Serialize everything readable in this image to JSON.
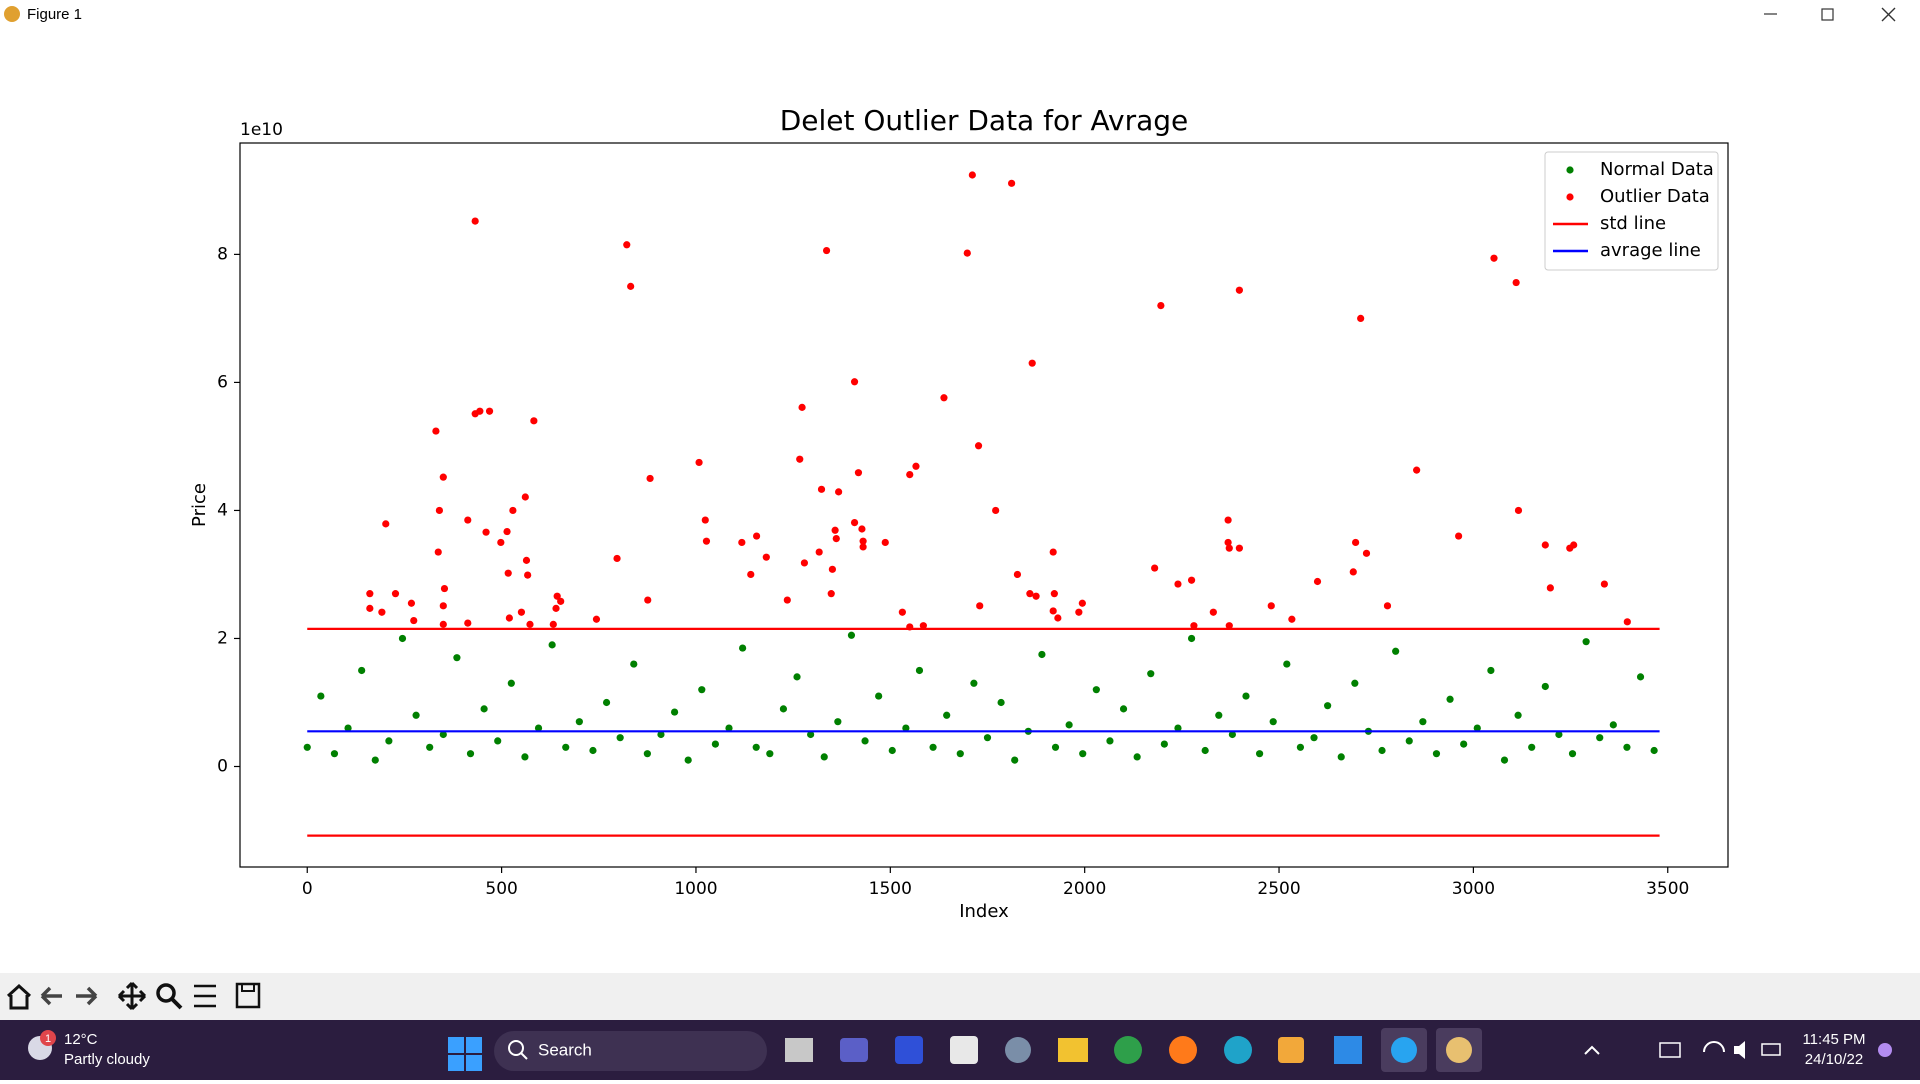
{
  "window": {
    "title": "Figure 1"
  },
  "chart_data": {
    "type": "scatter",
    "title": "Delet Outlier Data for Avrage",
    "x_label": "Index",
    "y_label": "Price",
    "y_offset_label": "1e10",
    "xlim": [
      -173,
      3655
    ],
    "ylim": [
      -1.57,
      9.74
    ],
    "xticks": [
      0,
      500,
      1000,
      1500,
      2000,
      2500,
      3000,
      3500
    ],
    "yticks": [
      0,
      2,
      4,
      6,
      8
    ],
    "grid": false,
    "legend": "upper right",
    "series": [
      {
        "name": "Normal Data",
        "type": "scatter",
        "color": "#008000",
        "x": [
          0,
          35,
          70,
          105,
          140,
          175,
          210,
          245,
          280,
          315,
          350,
          385,
          420,
          455,
          490,
          525,
          560,
          595,
          630,
          665,
          700,
          735,
          770,
          805,
          840,
          875,
          910,
          945,
          980,
          1015,
          1050,
          1085,
          1120,
          1155,
          1190,
          1225,
          1260,
          1295,
          1330,
          1365,
          1400,
          1435,
          1470,
          1505,
          1540,
          1575,
          1610,
          1645,
          1680,
          1715,
          1750,
          1785,
          1820,
          1855,
          1890,
          1925,
          1960,
          1995,
          2030,
          2065,
          2100,
          2135,
          2170,
          2205,
          2240,
          2275,
          2310,
          2345,
          2380,
          2415,
          2450,
          2485,
          2520,
          2555,
          2590,
          2625,
          2660,
          2695,
          2730,
          2765,
          2800,
          2835,
          2870,
          2905,
          2940,
          2975,
          3010,
          3045,
          3080,
          3115,
          3150,
          3185,
          3220,
          3255,
          3290,
          3325,
          3360,
          3395,
          3430,
          3465
        ],
        "values": [
          0.3,
          1.1,
          0.2,
          0.6,
          1.5,
          0.1,
          0.4,
          2.0,
          0.8,
          0.3,
          0.5,
          1.7,
          0.2,
          0.9,
          0.4,
          1.3,
          0.15,
          0.6,
          1.9,
          0.3,
          0.7,
          0.25,
          1.0,
          0.45,
          1.6,
          0.2,
          0.5,
          0.85,
          0.1,
          1.2,
          0.35,
          0.6,
          1.85,
          0.3,
          0.2,
          0.9,
          1.4,
          0.5,
          0.15,
          0.7,
          2.05,
          0.4,
          1.1,
          0.25,
          0.6,
          1.5,
          0.3,
          0.8,
          0.2,
          1.3,
          0.45,
          1.0,
          0.1,
          0.55,
          1.75,
          0.3,
          0.65,
          0.2,
          1.2,
          0.4,
          0.9,
          0.15,
          1.45,
          0.35,
          0.6,
          2.0,
          0.25,
          0.8,
          0.5,
          1.1,
          0.2,
          0.7,
          1.6,
          0.3,
          0.45,
          0.95,
          0.15,
          1.3,
          0.55,
          0.25,
          1.8,
          0.4,
          0.7,
          0.2,
          1.05,
          0.35,
          0.6,
          1.5,
          0.1,
          0.8,
          0.3,
          1.25,
          0.5,
          0.2,
          1.95,
          0.45,
          0.65,
          0.3,
          1.4,
          0.25
        ]
      },
      {
        "name": "Outlier Data",
        "type": "scatter",
        "color": "#ff0000",
        "x": [
          161,
          161,
          192,
          202,
          227,
          268,
          274,
          331,
          337,
          340,
          350,
          353,
          350,
          350,
          413,
          413,
          432,
          432,
          444,
          460,
          469,
          498,
          514,
          517,
          520,
          529,
          551,
          561,
          564,
          567,
          573,
          583,
          633,
          640,
          643,
          652,
          744,
          797,
          822,
          832,
          876,
          882,
          1008,
          1024,
          1027,
          1118,
          1141,
          1156,
          1181,
          1235,
          1267,
          1273,
          1279,
          1317,
          1323,
          1336,
          1348,
          1351,
          1358,
          1361,
          1367,
          1408,
          1408,
          1418,
          1427,
          1430,
          1430,
          1487,
          1531,
          1550,
          1566,
          1550,
          1585,
          1638,
          1698,
          1711,
          1727,
          1730,
          1771,
          1812,
          1827,
          1859,
          1865,
          1875,
          1919,
          1922,
          1919,
          1931,
          1985,
          1994,
          2180,
          2196,
          2240,
          2275,
          2281,
          2331,
          2369,
          2369,
          2372,
          2398,
          2398,
          2372,
          2480,
          2533,
          2599,
          2691,
          2697,
          2710,
          2725,
          2779,
          2854,
          2962,
          3053,
          3110,
          3116,
          3185,
          3198,
          3248,
          3258,
          3337,
          3396
        ],
        "values": [
          2.7,
          2.47,
          2.41,
          3.79,
          2.7,
          2.55,
          2.28,
          5.24,
          3.35,
          4.0,
          4.52,
          2.78,
          2.51,
          2.22,
          3.85,
          2.24,
          8.52,
          5.51,
          5.55,
          3.66,
          5.55,
          3.5,
          3.67,
          3.02,
          2.32,
          4.0,
          2.41,
          4.21,
          3.22,
          2.99,
          2.22,
          5.4,
          2.22,
          2.47,
          2.66,
          2.58,
          2.3,
          3.25,
          8.15,
          7.5,
          2.6,
          4.5,
          4.75,
          3.85,
          3.52,
          3.5,
          3.0,
          3.6,
          3.27,
          2.6,
          4.8,
          5.61,
          3.18,
          3.35,
          4.33,
          8.06,
          2.7,
          3.08,
          3.69,
          3.56,
          4.29,
          6.01,
          3.81,
          4.59,
          3.71,
          3.43,
          3.52,
          3.5,
          2.41,
          4.56,
          4.69,
          2.18,
          2.2,
          5.76,
          8.02,
          9.24,
          5.01,
          2.51,
          4.0,
          9.11,
          3.0,
          2.7,
          6.3,
          2.66,
          3.35,
          2.7,
          2.43,
          2.32,
          2.41,
          2.55,
          3.1,
          7.2,
          2.85,
          2.91,
          2.2,
          2.41,
          3.85,
          3.5,
          3.41,
          3.41,
          7.44,
          2.2,
          2.51,
          2.3,
          2.89,
          3.04,
          3.5,
          7.0,
          3.33,
          2.51,
          4.63,
          3.6,
          7.94,
          7.56,
          4.0,
          3.46,
          2.79,
          3.41,
          3.46,
          2.85,
          2.26
        ]
      },
      {
        "name": "std line",
        "type": "line",
        "color": "#ff0000",
        "x": [
          0,
          3479
        ],
        "values": [
          2.15,
          2.15
        ]
      },
      {
        "name": "avrage line",
        "type": "line",
        "color": "#0000ff",
        "x": [
          0,
          3479
        ],
        "values": [
          0.55,
          0.55
        ]
      },
      {
        "type": "line",
        "color": "#ff0000",
        "x": [
          0,
          3479
        ],
        "values": [
          -1.08,
          -1.08
        ]
      }
    ]
  },
  "taskbar": {
    "weather_badge": "1",
    "temperature": "12°C",
    "condition": "Partly cloudy",
    "search": "Search",
    "time": "11:45 PM",
    "date": "24/10/22"
  }
}
